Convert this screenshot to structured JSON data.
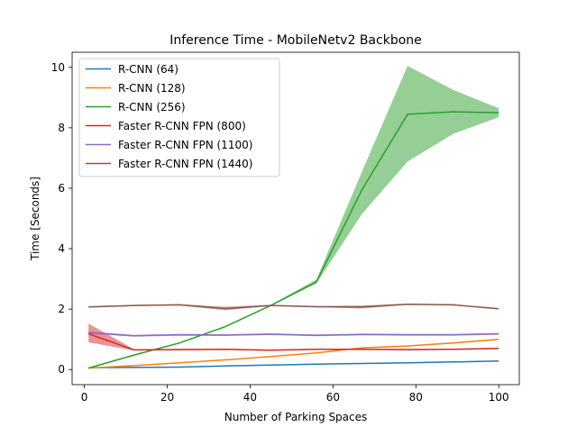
{
  "chart_data": {
    "type": "line",
    "title": "Inference Time - MobileNetv2 Backbone",
    "xlabel": "Number of Parking Spaces",
    "ylabel": "Time [Seconds]",
    "xlim": [
      -2.95,
      104.95
    ],
    "ylim": [
      -0.5,
      10.5
    ],
    "xticks": [
      0,
      20,
      40,
      60,
      80,
      100
    ],
    "yticks": [
      0,
      2,
      4,
      6,
      8,
      10
    ],
    "grid": false,
    "legend_position": "top-left",
    "x": [
      1,
      12,
      23,
      34,
      45,
      56,
      67,
      78,
      89,
      100
    ],
    "series": [
      {
        "name": "R-CNN (64)",
        "color": "#1f77b4",
        "values": [
          0.06,
          0.07,
          0.08,
          0.12,
          0.15,
          0.18,
          0.2,
          0.22,
          0.25,
          0.28
        ],
        "lower": [
          0.05,
          0.06,
          0.07,
          0.11,
          0.14,
          0.17,
          0.19,
          0.21,
          0.24,
          0.27
        ],
        "upper": [
          0.07,
          0.08,
          0.09,
          0.13,
          0.16,
          0.19,
          0.21,
          0.23,
          0.26,
          0.29
        ]
      },
      {
        "name": "R-CNN (128)",
        "color": "#ff7f0e",
        "values": [
          0.05,
          0.13,
          0.22,
          0.32,
          0.43,
          0.55,
          0.72,
          0.78,
          0.88,
          1.0
        ],
        "lower": [
          0.04,
          0.12,
          0.21,
          0.31,
          0.42,
          0.54,
          0.7,
          0.76,
          0.86,
          0.98
        ],
        "upper": [
          0.06,
          0.14,
          0.23,
          0.33,
          0.44,
          0.56,
          0.74,
          0.8,
          0.9,
          1.02
        ]
      },
      {
        "name": "R-CNN (256)",
        "color": "#2ca02c",
        "values": [
          0.05,
          0.48,
          0.88,
          1.42,
          2.12,
          2.9,
          5.95,
          8.45,
          8.53,
          8.5
        ],
        "lower": [
          0.03,
          0.46,
          0.86,
          1.4,
          2.1,
          2.85,
          5.15,
          6.88,
          7.8,
          8.35
        ],
        "upper": [
          0.07,
          0.5,
          0.9,
          1.44,
          2.14,
          2.98,
          6.55,
          10.05,
          9.25,
          8.65
        ]
      },
      {
        "name": "Faster R-CNN FPN (800)",
        "color": "#d62728",
        "values": [
          1.18,
          0.65,
          0.66,
          0.67,
          0.64,
          0.67,
          0.67,
          0.66,
          0.67,
          0.7
        ],
        "lower": [
          0.9,
          0.63,
          0.64,
          0.65,
          0.62,
          0.65,
          0.65,
          0.64,
          0.65,
          0.68
        ],
        "upper": [
          1.52,
          0.67,
          0.68,
          0.69,
          0.66,
          0.69,
          0.69,
          0.68,
          0.69,
          0.72
        ]
      },
      {
        "name": "Faster R-CNN FPN (1100)",
        "color": "#9467bd",
        "values": [
          1.22,
          1.12,
          1.15,
          1.14,
          1.17,
          1.13,
          1.16,
          1.15,
          1.15,
          1.18
        ],
        "lower": [
          1.18,
          1.09,
          1.12,
          1.11,
          1.14,
          1.1,
          1.13,
          1.12,
          1.12,
          1.15
        ],
        "upper": [
          1.26,
          1.15,
          1.18,
          1.17,
          1.2,
          1.16,
          1.19,
          1.18,
          1.18,
          1.21
        ]
      },
      {
        "name": "Faster R-CNN FPN (1440)",
        "color": "#8c564b",
        "values": [
          2.07,
          2.12,
          2.14,
          2.02,
          2.12,
          2.08,
          2.07,
          2.16,
          2.14,
          2.01
        ],
        "lower": [
          2.05,
          2.1,
          2.12,
          1.96,
          2.1,
          2.06,
          2.02,
          2.14,
          2.12,
          1.99
        ],
        "upper": [
          2.09,
          2.14,
          2.16,
          2.08,
          2.14,
          2.1,
          2.12,
          2.18,
          2.16,
          2.03
        ]
      }
    ]
  }
}
